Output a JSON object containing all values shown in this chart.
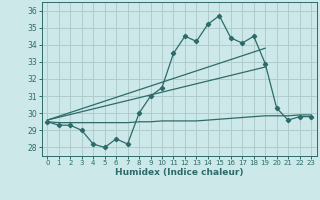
{
  "xlabel": "Humidex (Indice chaleur)",
  "bg_color": "#cde8e8",
  "grid_color": "#b0cccc",
  "line_color": "#2d6b6b",
  "ylim": [
    27.5,
    36.5
  ],
  "xlim": [
    -0.5,
    23.5
  ],
  "yticks": [
    28,
    29,
    30,
    31,
    32,
    33,
    34,
    35,
    36
  ],
  "xticks": [
    0,
    1,
    2,
    3,
    4,
    5,
    6,
    7,
    8,
    9,
    10,
    11,
    12,
    13,
    14,
    15,
    16,
    17,
    18,
    19,
    20,
    21,
    22,
    23
  ],
  "line_main": [
    29.5,
    29.3,
    29.3,
    29.0,
    28.2,
    28.0,
    28.5,
    28.2,
    30.0,
    31.0,
    31.5,
    33.5,
    34.5,
    34.2,
    35.2,
    35.7,
    34.4,
    34.1,
    34.5,
    32.9,
    30.3,
    29.6,
    29.8,
    29.8
  ],
  "trend1_x": [
    0,
    19
  ],
  "trend1_y": [
    29.6,
    33.8
  ],
  "trend2_x": [
    0,
    19
  ],
  "trend2_y": [
    29.6,
    32.7
  ],
  "flat_line": [
    29.5,
    29.45,
    29.45,
    29.45,
    29.45,
    29.45,
    29.45,
    29.45,
    29.5,
    29.5,
    29.55,
    29.55,
    29.55,
    29.55,
    29.6,
    29.65,
    29.7,
    29.75,
    29.8,
    29.85,
    29.85,
    29.85,
    29.9,
    29.9
  ]
}
